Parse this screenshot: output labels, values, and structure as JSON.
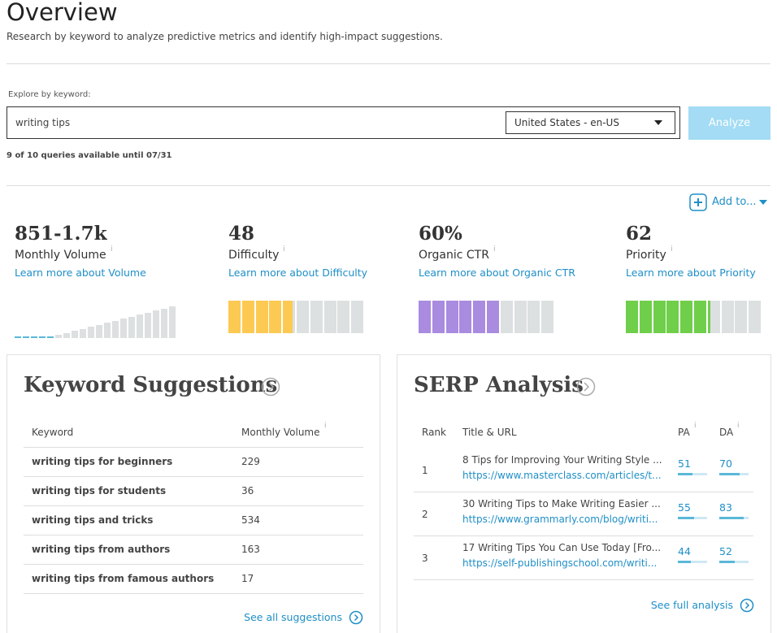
{
  "header": {
    "title": "Overview",
    "subtitle": "Research by keyword to analyze predictive metrics and identify high-impact suggestions."
  },
  "search": {
    "label": "Explore by keyword:",
    "query": "writing tips",
    "locale": "United States - en-US",
    "button": "Analyze",
    "quota": "9 of 10 queries available until 07/31"
  },
  "add_to": "Add to...",
  "info_icon": "i",
  "metrics": [
    {
      "value": "851-1.7k",
      "name": "Monthly Volume",
      "link": "Learn more about Volume"
    },
    {
      "value": 48,
      "name": "Difficulty",
      "link": "Learn more about Difficulty",
      "color": "#fcc952"
    },
    {
      "value": {
        "value": 60,
        "label": "60%"
      },
      "name": "Organic CTR",
      "link": "Learn more about Organic CTR",
      "color": "#a98be0"
    },
    {
      "value": 62,
      "name": "Priority",
      "link": "Learn more about Priority",
      "color": "#6fcf4a"
    }
  ],
  "keyword_suggestions": {
    "title": "Keyword Suggestions",
    "columns": [
      "Keyword",
      "Monthly Volume"
    ],
    "rows": [
      [
        "writing tips for beginners",
        229
      ],
      [
        "writing tips for students",
        36
      ],
      [
        "writing tips and tricks",
        534
      ],
      [
        "writing tips from authors",
        163
      ],
      [
        "writing tips from famous authors",
        17
      ]
    ],
    "footer": "See all suggestions"
  },
  "serp_analysis": {
    "title": "SERP Analysis",
    "columns": [
      "Rank",
      "Title & URL",
      "PA",
      "DA"
    ],
    "rows": [
      {
        "rank": 1,
        "title": "8 Tips for Improving Your Writing Style ...",
        "url": "https://www.masterclass.com/articles/t...",
        "pa": 51,
        "da": 70
      },
      {
        "rank": 2,
        "title": "30 Writing Tips to Make Writing Easier ...",
        "url": "https://www.grammarly.com/blog/writi...",
        "pa": 55,
        "da": 83
      },
      {
        "rank": 3,
        "title": "17 Writing Tips You Can Use Today [Fro...",
        "url": "https://self-publishingschool.com/writi...",
        "pa": 44,
        "da": 52
      }
    ],
    "footer": "See full analysis"
  }
}
